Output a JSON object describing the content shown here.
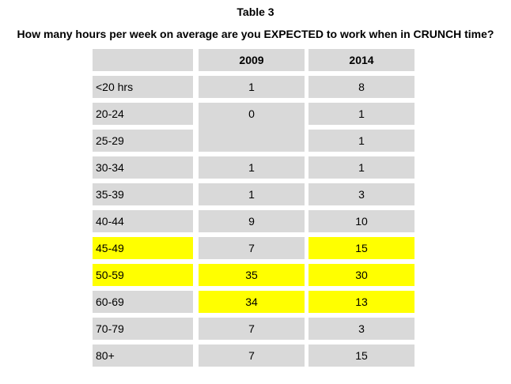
{
  "table_number": "Table 3",
  "title": "How many hours per week on average are you EXPECTED to work when in CRUNCH time?",
  "colors": {
    "cell_background": "#d9d9d9",
    "highlight": "#ffff00"
  },
  "headers": {
    "range": "",
    "y2009": "2009",
    "y2014": "2014"
  },
  "rows": [
    {
      "range": "<20 hrs",
      "y2009": "1",
      "y2014": "8",
      "highlight": []
    },
    {
      "range": "20-24",
      "y2009": "0",
      "y2014": "1",
      "highlight": []
    },
    {
      "range": "25-29",
      "y2009": "",
      "y2014": "1",
      "highlight": []
    },
    {
      "range": "30-34",
      "y2009": "1",
      "y2014": "1",
      "highlight": []
    },
    {
      "range": "35-39",
      "y2009": "1",
      "y2014": "3",
      "highlight": []
    },
    {
      "range": "40-44",
      "y2009": "9",
      "y2014": "10",
      "highlight": []
    },
    {
      "range": "45-49",
      "y2009": "7",
      "y2014": "15",
      "highlight": [
        "range",
        "y2014"
      ]
    },
    {
      "range": "50-59",
      "y2009": "35",
      "y2014": "30",
      "highlight": [
        "range",
        "y2009",
        "y2014"
      ]
    },
    {
      "range": "60-69",
      "y2009": "34",
      "y2014": "13",
      "highlight": [
        "y2009",
        "y2014"
      ]
    },
    {
      "range": "70-79",
      "y2009": "7",
      "y2014": "3",
      "highlight": []
    },
    {
      "range": "80+",
      "y2009": "7",
      "y2014": "15",
      "highlight": []
    }
  ]
}
